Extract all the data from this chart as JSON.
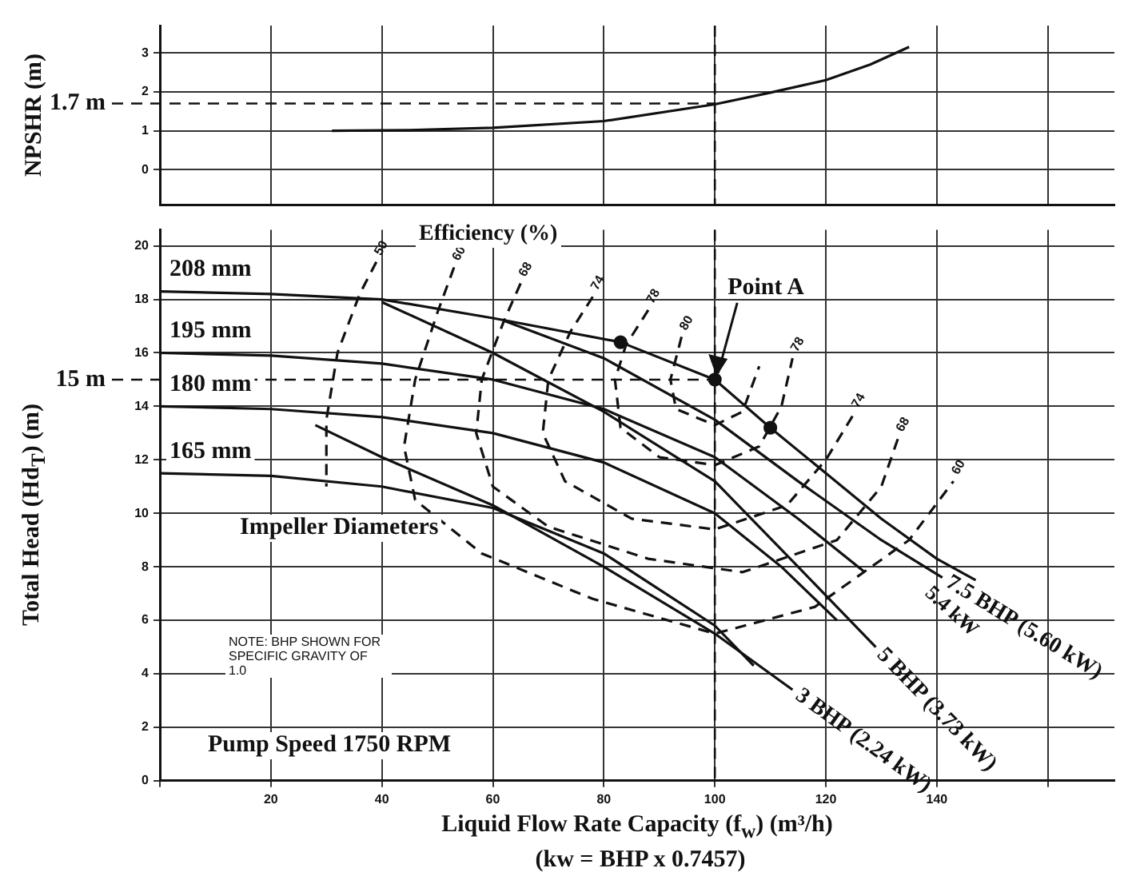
{
  "chart_data": [
    {
      "type": "line",
      "ylabel": "NPSHR (m)",
      "xlim": [
        0,
        172
      ],
      "ylim": [
        -0.9,
        3.7
      ],
      "xticks": [
        {
          "value": 0,
          "label": null
        },
        {
          "value": 20,
          "label": null
        },
        {
          "value": 40,
          "label": null
        },
        {
          "value": 60,
          "label": null
        },
        {
          "value": 80,
          "label": null
        },
        {
          "value": 100,
          "label": null
        },
        {
          "value": 120,
          "label": null
        },
        {
          "value": 140,
          "label": null
        },
        {
          "value": 160,
          "label": null
        }
      ],
      "yticks": [
        0,
        1,
        2,
        3
      ],
      "tick_labels": "y",
      "grid": true,
      "legend": false,
      "marker": "none",
      "line_style": "solid",
      "series": [
        {
          "color": "#111111",
          "x": [
            31,
            45,
            60,
            80,
            100,
            110,
            120,
            128,
            135
          ],
          "values": [
            1.0,
            1.02,
            1.08,
            1.25,
            1.68,
            1.98,
            2.3,
            2.7,
            3.15
          ]
        }
      ],
      "ref_lines": [
        {
          "axis": "y",
          "value": 1.7,
          "label": "1.7 m",
          "line_style": "dashed"
        },
        {
          "axis": "x",
          "value": 100,
          "line_style": "dashed"
        }
      ]
    },
    {
      "type": "line",
      "xlabel": "Liquid Flow Rate Capacity (f$_{w}$) (m³/h)",
      "ylabel": "Total Head (Hd$_{T}$) (m)",
      "xlim": [
        0,
        172
      ],
      "ylim": [
        0,
        20.6
      ],
      "xticks": [
        {
          "value": 0,
          "label": null
        },
        20,
        40,
        60,
        80,
        100,
        120,
        140,
        {
          "value": 160,
          "label": null
        }
      ],
      "yticks": [
        0,
        2,
        4,
        6,
        8,
        10,
        12,
        14,
        16,
        18,
        20
      ],
      "grid": true,
      "legend": false,
      "marker": "none",
      "line_style": "solid",
      "series": [
        {
          "name": "208 mm",
          "color": "#111111",
          "x": [
            0,
            20,
            40,
            60,
            83,
            100,
            110,
            120,
            130,
            140,
            147
          ],
          "values": [
            18.3,
            18.2,
            18.0,
            17.3,
            16.4,
            15.0,
            13.2,
            11.5,
            9.8,
            8.3,
            7.5
          ]
        },
        {
          "name": "195 mm",
          "color": "#111111",
          "x": [
            0,
            20,
            40,
            60,
            80,
            100,
            115,
            127
          ],
          "values": [
            16.0,
            15.9,
            15.6,
            15.0,
            13.9,
            12.1,
            9.8,
            7.8
          ]
        },
        {
          "name": "180 mm",
          "color": "#111111",
          "x": [
            0,
            20,
            40,
            60,
            80,
            100,
            112,
            122
          ],
          "values": [
            14.0,
            13.9,
            13.6,
            13.0,
            11.9,
            10.0,
            8.0,
            6.0
          ]
        },
        {
          "name": "165 mm",
          "color": "#111111",
          "x": [
            0,
            20,
            40,
            60,
            80,
            100,
            107
          ],
          "values": [
            11.5,
            11.4,
            11.0,
            10.2,
            8.5,
            5.8,
            4.3
          ]
        },
        {
          "name": "3 BHP (2.24 kW)",
          "color": "#111111",
          "x": [
            28,
            40,
            60,
            80,
            100,
            114
          ],
          "values": [
            13.3,
            12.1,
            10.3,
            8.0,
            5.5,
            3.4
          ]
        },
        {
          "name": "5 BHP (3.73 kW)",
          "color": "#111111",
          "x": [
            40,
            60,
            80,
            100,
            115,
            129
          ],
          "values": [
            17.9,
            16.0,
            13.8,
            11.2,
            8.0,
            5.0
          ]
        },
        {
          "name": "7.5 BHP (5.60 kW)",
          "color": "#111111",
          "x": [
            62,
            80,
            100,
            115,
            130,
            141
          ],
          "values": [
            17.2,
            15.8,
            13.5,
            11.2,
            9.0,
            7.6
          ]
        },
        {
          "name": "50",
          "color": "#111111",
          "line_style": "dashed",
          "x": [
            39,
            36,
            32,
            30,
            30
          ],
          "values": [
            19.4,
            18.2,
            16.0,
            13.5,
            11.0
          ]
        },
        {
          "name": "60",
          "color": "#111111",
          "line_style": "dashed",
          "x": [
            53,
            50,
            46,
            44,
            46,
            58,
            78,
            100,
            118,
            135,
            143
          ],
          "values": [
            19.2,
            17.5,
            15.0,
            12.5,
            10.5,
            8.5,
            6.8,
            5.5,
            6.5,
            9.0,
            11.2
          ]
        },
        {
          "name": "68",
          "color": "#111111",
          "line_style": "dashed",
          "x": [
            65,
            62,
            58,
            57,
            60,
            70,
            88,
            105,
            122,
            130,
            133
          ],
          "values": [
            18.6,
            17.2,
            15.0,
            13.0,
            11.0,
            9.5,
            8.3,
            7.8,
            9.0,
            11.0,
            12.8
          ]
        },
        {
          "name": "74",
          "color": "#111111",
          "line_style": "dashed",
          "x": [
            78,
            74,
            70,
            69,
            73,
            85,
            100,
            113,
            120,
            125
          ],
          "values": [
            18.1,
            16.8,
            15.0,
            13.0,
            11.2,
            9.8,
            9.4,
            10.3,
            12.0,
            13.7
          ]
        },
        {
          "name": "78",
          "color": "#111111",
          "line_style": "dashed",
          "x": [
            88,
            84,
            82,
            83,
            90,
            100,
            108,
            112,
            114
          ],
          "values": [
            17.6,
            16.3,
            15.0,
            13.2,
            12.1,
            11.8,
            12.5,
            14.0,
            15.8
          ]
        },
        {
          "name": "80",
          "color": "#111111",
          "line_style": "dashed",
          "x": [
            94,
            92,
            93,
            100,
            105,
            108
          ],
          "values": [
            16.6,
            15.0,
            13.9,
            13.3,
            13.8,
            15.5
          ]
        },
        {
          "type": "scatter",
          "marker": "circle",
          "color": "#111111",
          "x": [
            83,
            100,
            110
          ],
          "values": [
            16.4,
            15.0,
            13.2
          ]
        }
      ],
      "ref_lines": [
        {
          "axis": "y",
          "value": 15,
          "label": "15 m",
          "line_style": "dashed"
        },
        {
          "axis": "x",
          "value": 100,
          "line_style": "dashed"
        }
      ],
      "annotations": [
        "Efficiency (%)",
        "Impeller Diameters",
        "NOTE: BHP SHOWN FOR SPECIFIC GRAVITY OF 1.0",
        "Pump Speed 1750 RPM",
        "5.4 kW",
        "(kw = BHP x 0.7457)",
        {
          "text": "Point A",
          "x": 100,
          "y": 15
        }
      ]
    }
  ]
}
